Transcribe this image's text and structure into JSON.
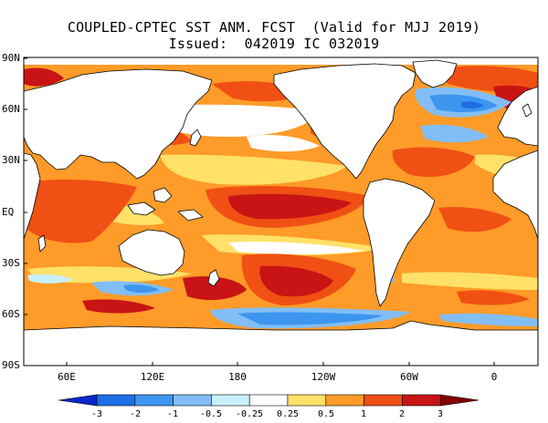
{
  "header": {
    "title_line1": "COUPLED-CPTEC SST ANM. FCST  (Valid for MJJ 2019)",
    "title_line2": "Issued:  042019 IC 032019"
  },
  "axes": {
    "lat_labels": [
      "90N",
      "60N",
      "30N",
      "EQ",
      "30S",
      "60S",
      "90S"
    ],
    "lon_labels": [
      "60E",
      "120E",
      "180",
      "120W",
      "60W",
      "0"
    ]
  },
  "colorbar": {
    "tick_labels": [
      "-3",
      "-2",
      "-1",
      "-0.5",
      "-0.25",
      "0.25",
      "0.5",
      "1",
      "2",
      "3"
    ],
    "colors": [
      "#0a28c8",
      "#1e6ee6",
      "#3c96f0",
      "#82bef5",
      "#c8f0ff",
      "#ffffff",
      "#ffe169",
      "#ff9b28",
      "#f05014",
      "#c81414",
      "#820000"
    ]
  }
}
